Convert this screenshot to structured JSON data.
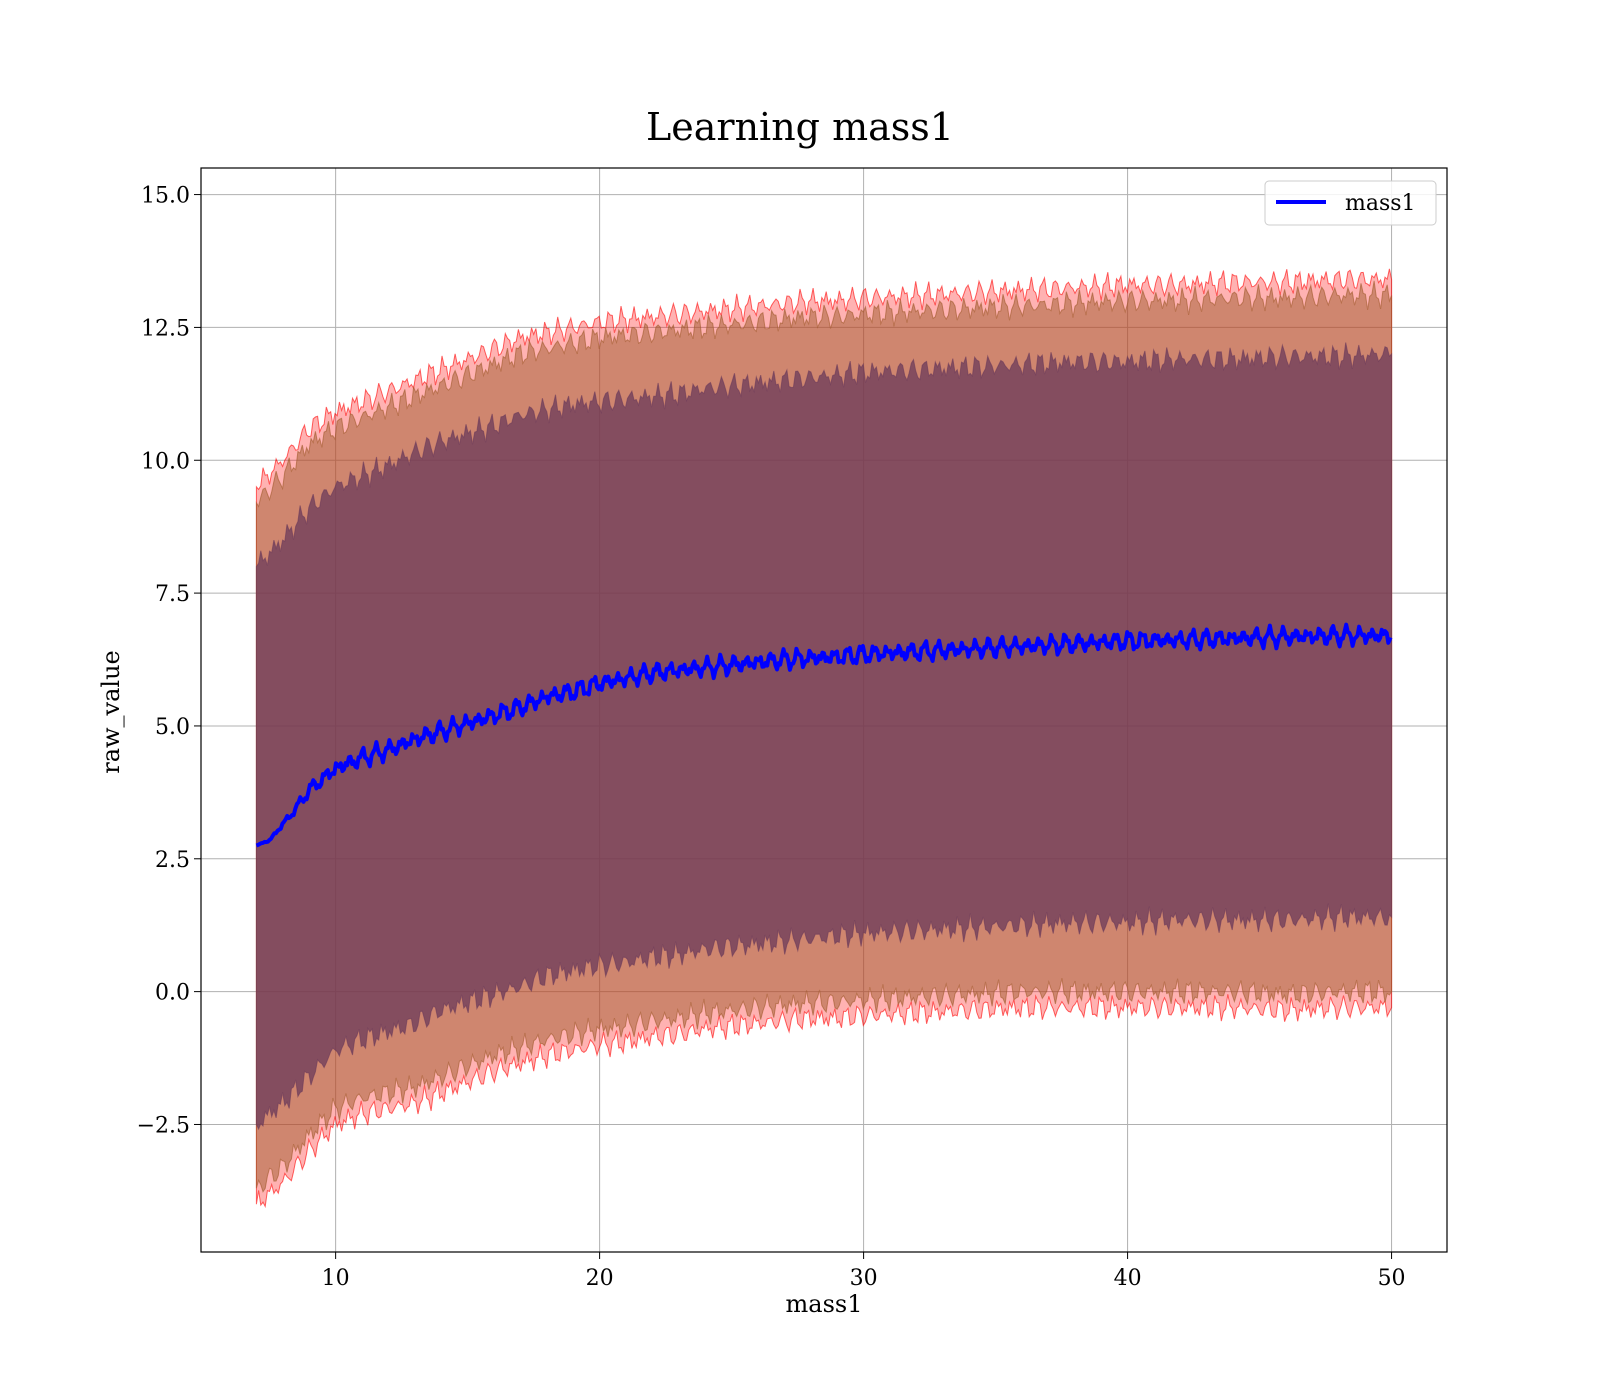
{
  "chart_data": {
    "type": "line",
    "title": "Learning mass1",
    "xlabel": "mass1",
    "ylabel": "raw_value",
    "xlim": [
      4.9,
      52.1
    ],
    "ylim": [
      -4.9,
      15.5
    ],
    "x_ticks": [
      10,
      20,
      30,
      40,
      50
    ],
    "x_tick_labels": [
      "10",
      "20",
      "30",
      "40",
      "50"
    ],
    "y_ticks": [
      -2.5,
      0.0,
      2.5,
      5.0,
      7.5,
      10.0,
      12.5,
      15.0
    ],
    "y_tick_labels": [
      "−2.5",
      "0.0",
      "2.5",
      "5.0",
      "7.5",
      "10.0",
      "12.5",
      "15.0"
    ],
    "grid": true,
    "legend_position": "top-right",
    "series": [
      {
        "name": "mass1",
        "color": "#0000ff",
        "x": [
          7,
          7.5,
          8,
          8.5,
          9,
          9.5,
          10,
          11,
          12,
          13,
          14,
          15,
          16,
          17,
          18,
          19,
          20,
          21,
          22,
          23,
          24,
          25,
          26,
          27,
          28,
          29,
          30,
          32,
          34,
          36,
          38,
          40,
          42,
          44,
          46,
          48,
          50
        ],
        "y": [
          2.75,
          2.85,
          3.15,
          3.45,
          3.8,
          4.0,
          4.2,
          4.4,
          4.55,
          4.75,
          4.9,
          5.05,
          5.2,
          5.35,
          5.55,
          5.65,
          5.8,
          5.9,
          6.0,
          6.05,
          6.1,
          6.15,
          6.2,
          6.25,
          6.28,
          6.3,
          6.35,
          6.4,
          6.45,
          6.5,
          6.55,
          6.6,
          6.62,
          6.65,
          6.68,
          6.7,
          6.7
        ]
      }
    ],
    "bands": [
      {
        "color": "#ff0000",
        "opacity": 0.3,
        "x": [
          7,
          8,
          9,
          10,
          11,
          12,
          13,
          14,
          15,
          16,
          17,
          18,
          19,
          20,
          21,
          22,
          23,
          24,
          25,
          26,
          27,
          28,
          29,
          30,
          32,
          34,
          36,
          38,
          40,
          42,
          44,
          46,
          48,
          50
        ],
        "upper": [
          9.5,
          10.0,
          10.6,
          10.9,
          11.1,
          11.3,
          11.5,
          11.7,
          11.9,
          12.1,
          12.3,
          12.4,
          12.5,
          12.6,
          12.65,
          12.7,
          12.75,
          12.8,
          12.85,
          12.9,
          12.95,
          13.0,
          13.0,
          13.05,
          13.1,
          13.15,
          13.2,
          13.25,
          13.3,
          13.3,
          13.35,
          13.35,
          13.4,
          13.4
        ],
        "lower": [
          -4.0,
          -3.6,
          -3.0,
          -2.5,
          -2.3,
          -2.2,
          -2.1,
          -1.9,
          -1.7,
          -1.5,
          -1.35,
          -1.2,
          -1.1,
          -1.0,
          -0.95,
          -0.85,
          -0.8,
          -0.7,
          -0.65,
          -0.6,
          -0.55,
          -0.5,
          -0.5,
          -0.45,
          -0.4,
          -0.35,
          -0.3,
          -0.3,
          -0.3,
          -0.3,
          -0.3,
          -0.35,
          -0.3,
          -0.3
        ]
      },
      {
        "color": "#a05a2c",
        "opacity": 0.5,
        "x": [
          7,
          8,
          9,
          10,
          11,
          12,
          13,
          14,
          15,
          16,
          17,
          18,
          19,
          20,
          21,
          22,
          23,
          24,
          25,
          26,
          27,
          28,
          29,
          30,
          32,
          34,
          36,
          38,
          40,
          42,
          44,
          46,
          48,
          50
        ],
        "upper": [
          9.2,
          9.7,
          10.3,
          10.6,
          10.8,
          11.0,
          11.2,
          11.4,
          11.6,
          11.8,
          12.0,
          12.1,
          12.2,
          12.3,
          12.35,
          12.4,
          12.45,
          12.5,
          12.55,
          12.6,
          12.65,
          12.7,
          12.7,
          12.75,
          12.8,
          12.85,
          12.9,
          12.95,
          13.0,
          13.0,
          13.05,
          13.05,
          13.1,
          13.1
        ],
        "lower": [
          -3.7,
          -3.3,
          -2.7,
          -2.2,
          -2.0,
          -1.9,
          -1.8,
          -1.6,
          -1.4,
          -1.2,
          -1.05,
          -0.9,
          -0.8,
          -0.7,
          -0.65,
          -0.55,
          -0.5,
          -0.4,
          -0.35,
          -0.3,
          -0.25,
          -0.2,
          -0.2,
          -0.15,
          -0.1,
          -0.05,
          0.0,
          0.0,
          0.0,
          0.0,
          0.0,
          -0.05,
          0.0,
          0.0
        ]
      },
      {
        "color": "#6b3a5a",
        "opacity": 0.75,
        "x": [
          7,
          8,
          9,
          10,
          11,
          12,
          13,
          14,
          15,
          16,
          17,
          18,
          19,
          20,
          21,
          22,
          23,
          24,
          25,
          26,
          27,
          28,
          29,
          30,
          32,
          34,
          36,
          38,
          40,
          42,
          44,
          46,
          48,
          50
        ],
        "upper": [
          8.0,
          8.5,
          9.1,
          9.5,
          9.7,
          9.9,
          10.15,
          10.35,
          10.5,
          10.65,
          10.85,
          10.95,
          11.05,
          11.1,
          11.15,
          11.2,
          11.25,
          11.35,
          11.4,
          11.45,
          11.5,
          11.55,
          11.6,
          11.65,
          11.7,
          11.75,
          11.8,
          11.85,
          11.85,
          11.9,
          11.9,
          11.95,
          11.95,
          12.0
        ],
        "lower": [
          -2.5,
          -2.1,
          -1.6,
          -1.1,
          -0.9,
          -0.75,
          -0.6,
          -0.35,
          -0.2,
          -0.05,
          0.1,
          0.3,
          0.4,
          0.5,
          0.55,
          0.65,
          0.7,
          0.8,
          0.85,
          0.9,
          0.95,
          1.0,
          1.05,
          1.1,
          1.15,
          1.2,
          1.25,
          1.3,
          1.3,
          1.35,
          1.35,
          1.35,
          1.4,
          1.4
        ]
      }
    ]
  }
}
